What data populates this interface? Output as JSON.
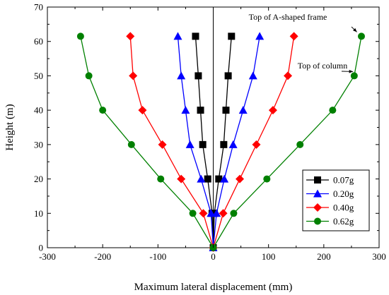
{
  "chart_data": {
    "type": "line",
    "xlabel": "Maximum lateral displacement (mm)",
    "ylabel": "Height (m)",
    "xlim": [
      -300,
      300
    ],
    "ylim": [
      0,
      70
    ],
    "xticks": [
      -300,
      -200,
      -100,
      0,
      100,
      200,
      300
    ],
    "yticks": [
      0,
      10,
      20,
      30,
      40,
      50,
      60,
      70
    ],
    "x_tick_labels": [
      "-300",
      "-200",
      "-100",
      "0",
      "100",
      "200",
      "300"
    ],
    "y_tick_labels": [
      "0",
      "10",
      "20",
      "30",
      "40",
      "50",
      "60",
      "70"
    ],
    "grid": false,
    "legend_position": "lower-right",
    "heights": [
      0,
      10,
      20,
      30,
      40,
      50,
      61.5
    ],
    "series": [
      {
        "name": "0.07g",
        "color": "#000000",
        "marker": "square",
        "left": [
          0,
          -2,
          -10,
          -19,
          -23,
          -27,
          -32
        ],
        "right": [
          0,
          2,
          10,
          19,
          23,
          27,
          33
        ]
      },
      {
        "name": "0.20g",
        "color": "#0000ff",
        "marker": "triangle",
        "left": [
          0,
          -4,
          -22,
          -42,
          -50,
          -58,
          -64
        ],
        "right": [
          0,
          6,
          20,
          36,
          54,
          72,
          84
        ]
      },
      {
        "name": "0.40g",
        "color": "#ff0000",
        "marker": "diamond",
        "left": [
          0,
          -18,
          -58,
          -92,
          -128,
          -145,
          -150
        ],
        "right": [
          0,
          18,
          48,
          78,
          108,
          135,
          146
        ]
      },
      {
        "name": "0.62g",
        "color": "#008000",
        "marker": "circle",
        "left": [
          0,
          -37,
          -95,
          -148,
          -200,
          -225,
          -240
        ],
        "right": [
          0,
          37,
          97,
          157,
          216,
          255,
          268
        ]
      }
    ],
    "annotations": [
      {
        "text": "Top of A-shaped frame",
        "target_x": 265,
        "target_y": 61.5
      },
      {
        "text": "Top of column",
        "target_x": 258,
        "target_y": 50
      }
    ]
  }
}
